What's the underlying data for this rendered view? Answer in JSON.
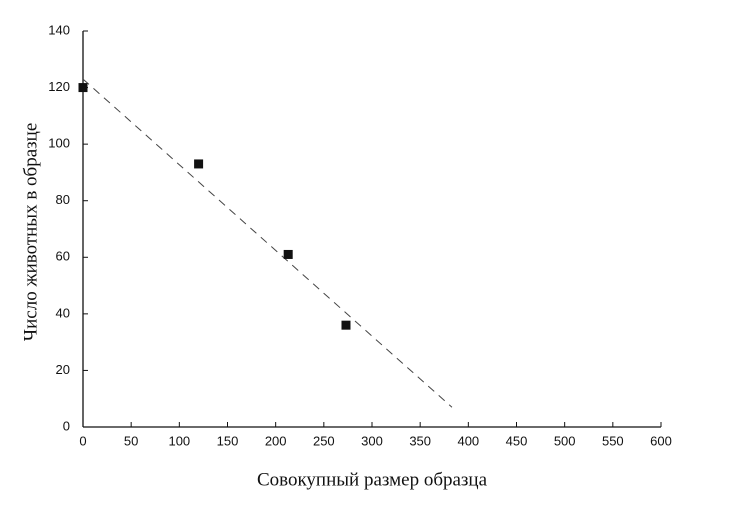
{
  "chart_data": {
    "type": "scatter",
    "x_label": "Совокупный размер образца",
    "y_label": "Число животных в образце",
    "x": [
      0,
      120,
      213,
      273
    ],
    "values": [
      120,
      93,
      61,
      36
    ],
    "color": "#111111",
    "trendline": {
      "x": [
        0,
        383
      ],
      "values": [
        123,
        7
      ]
    },
    "xlim": [
      0,
      600
    ],
    "xticks": [
      0,
      50,
      100,
      150,
      200,
      250,
      300,
      350,
      400,
      450,
      500,
      550,
      600
    ],
    "ylim": [
      0,
      140
    ],
    "yticks": [
      0,
      20,
      40,
      60,
      80,
      100,
      120,
      140
    ],
    "grid": false
  }
}
